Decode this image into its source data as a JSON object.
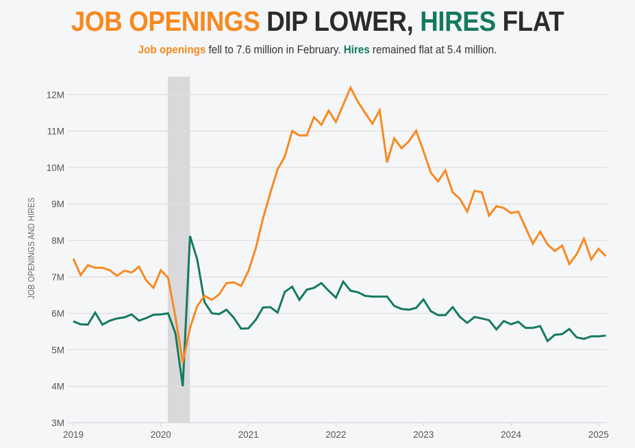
{
  "header": {
    "title_parts": [
      {
        "text": "JOB OPENINGS",
        "color": "#f7891f"
      },
      {
        "text": " DIP LOWER, ",
        "color": "#2b2b2b"
      },
      {
        "text": "HIRES",
        "color": "#147a5c"
      },
      {
        "text": " FLAT",
        "color": "#2b2b2b"
      }
    ],
    "subtitle": {
      "s1": "Job openings",
      "s2": " fell to 7.6 million in February. ",
      "s3": "Hires",
      "s4": " remained flat at 5.4 million."
    }
  },
  "chart_data": {
    "type": "line",
    "title": "JOB OPENINGS DIP LOWER, HIRES FLAT",
    "subtitle": "Job openings fell to 7.6 million in February. Hires remained flat at 5.4 million.",
    "xlabel": "",
    "ylabel": "JOB OPENINGS AND HIRES",
    "x_start": "2019-01",
    "x_end": "2025-02",
    "frequency": "monthly",
    "xlim": [
      "2019-01",
      "2025-02"
    ],
    "ylim": [
      3,
      12
    ],
    "y_unit": "millions",
    "y_ticks": [
      3,
      4,
      5,
      6,
      7,
      8,
      9,
      10,
      11,
      12
    ],
    "y_tick_labels": [
      "3M",
      "4M",
      "5M",
      "6M",
      "7M",
      "8M",
      "9M",
      "10M",
      "11M",
      "12M"
    ],
    "x_ticks": [
      "2019",
      "2020",
      "2021",
      "2022",
      "2023",
      "2024",
      "2025"
    ],
    "grid": true,
    "shaded_regions": [
      {
        "label": "recession",
        "start": "2020-02",
        "end": "2020-04",
        "color": "#d9d9db"
      }
    ],
    "series": [
      {
        "name": "Job openings",
        "color": "#f7891f",
        "values": [
          7.5,
          7.05,
          7.32,
          7.25,
          7.25,
          7.18,
          7.03,
          7.17,
          7.12,
          7.28,
          6.9,
          6.7,
          7.18,
          6.98,
          5.9,
          4.65,
          5.6,
          6.2,
          6.48,
          6.37,
          6.52,
          6.83,
          6.85,
          6.75,
          7.16,
          7.78,
          8.6,
          9.3,
          9.95,
          10.3,
          11.0,
          10.88,
          10.88,
          11.38,
          11.17,
          11.56,
          11.25,
          11.72,
          12.19,
          11.81,
          11.5,
          11.2,
          11.57,
          10.14,
          10.8,
          10.53,
          10.72,
          11.01,
          10.45,
          9.86,
          9.62,
          9.92,
          9.32,
          9.14,
          8.79,
          9.36,
          9.32,
          8.68,
          8.94,
          8.89,
          8.75,
          8.79,
          8.35,
          7.91,
          8.24,
          7.89,
          7.71,
          7.86,
          7.35,
          7.62,
          8.05,
          7.48,
          7.77,
          7.57
        ]
      },
      {
        "name": "Hires",
        "color": "#147a5c",
        "values": [
          5.78,
          5.7,
          5.69,
          6.02,
          5.69,
          5.8,
          5.86,
          5.89,
          5.97,
          5.8,
          5.87,
          5.96,
          5.97,
          6.0,
          5.45,
          4.0,
          8.12,
          7.47,
          6.3,
          6.0,
          5.98,
          6.1,
          5.88,
          5.58,
          5.59,
          5.82,
          6.16,
          6.17,
          6.02,
          6.59,
          6.73,
          6.37,
          6.65,
          6.7,
          6.83,
          6.62,
          6.43,
          6.87,
          6.62,
          6.58,
          6.48,
          6.46,
          6.46,
          6.46,
          6.2,
          6.12,
          6.1,
          6.15,
          6.38,
          6.06,
          5.95,
          5.95,
          6.17,
          5.9,
          5.74,
          5.9,
          5.86,
          5.81,
          5.56,
          5.79,
          5.7,
          5.77,
          5.6,
          5.6,
          5.65,
          5.24,
          5.41,
          5.43,
          5.57,
          5.34,
          5.3,
          5.37,
          5.37,
          5.39
        ]
      }
    ]
  }
}
